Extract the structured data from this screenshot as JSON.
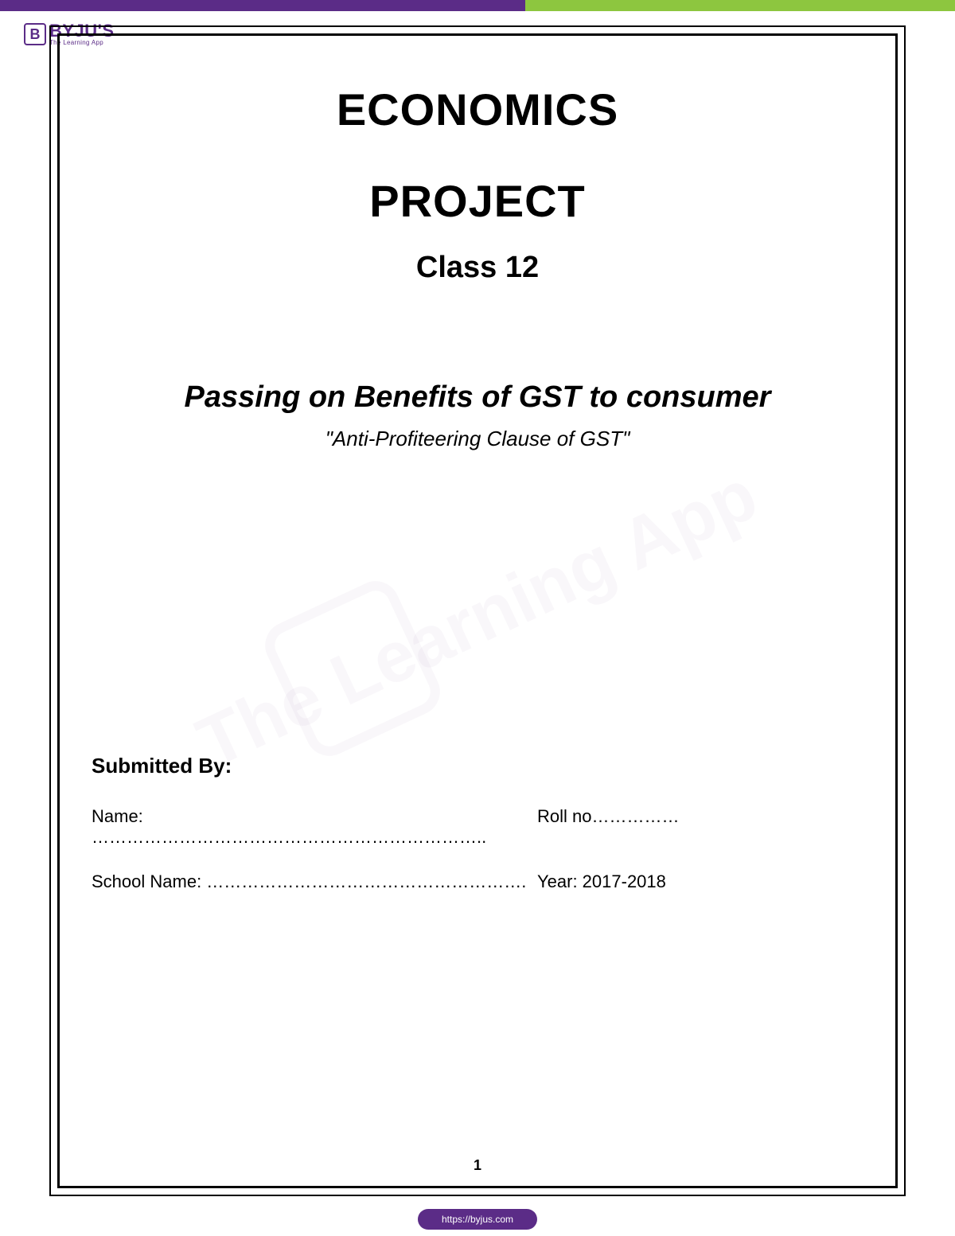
{
  "header": {
    "logo_brand": "BYJU'S",
    "logo_tagline": "The Learning App",
    "logo_letter": "B"
  },
  "title": {
    "line1": "ECONOMICS",
    "line2": "PROJECT",
    "line3": "Class 12"
  },
  "topic": {
    "main": "Passing on Benefits of GST to consumer",
    "sub": "\"Anti-Profiteering Clause of GST\""
  },
  "submitted": {
    "header": "Submitted By",
    "name_label": "Name: …………………………………………………………..",
    "roll_label": "Roll no……………",
    "school_label": "School Name: ……………………………………………….",
    "year_label": "Year: 2017-2018"
  },
  "page_number": "1",
  "footer_url": "https://byjus.com",
  "watermark_text": "The Learning App",
  "colors": {
    "brand_purple": "#5b2c87",
    "brand_green": "#8dc63f",
    "text_black": "#000000",
    "background": "#ffffff"
  }
}
